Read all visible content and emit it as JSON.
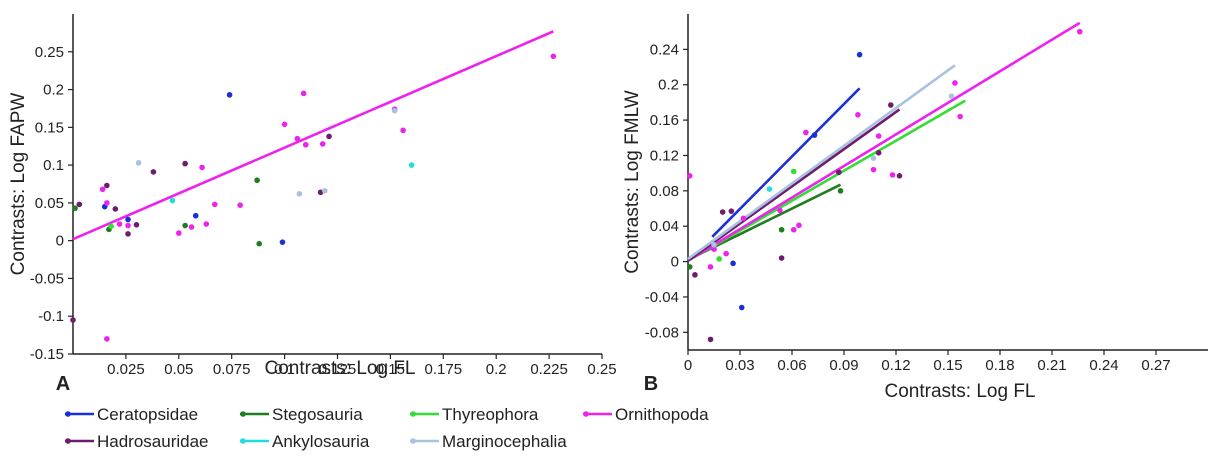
{
  "legend": [
    {
      "name": "Ceratopsidae",
      "color": "#1a2fd6"
    },
    {
      "name": "Stegosauria",
      "color": "#1e7d1e"
    },
    {
      "name": "Thyreophora",
      "color": "#33dd33"
    },
    {
      "name": "Ornithopoda",
      "color": "#ee22ee"
    },
    {
      "name": "Hadrosauridae",
      "color": "#6e1c6e"
    },
    {
      "name": "Ankylosauria",
      "color": "#22dddd"
    },
    {
      "name": "Marginocephalia",
      "color": "#a9c2e0"
    }
  ],
  "chart_data": [
    {
      "panel": "A",
      "type": "scatter",
      "xlabel": "Contrasts: Log FL",
      "ylabel": "Contrasts: Log FAPW",
      "xlim": [
        0,
        0.25
      ],
      "ylim": [
        -0.15,
        0.3
      ],
      "x_ticks": [
        0.025,
        0.05,
        0.075,
        0.1,
        0.125,
        0.15,
        0.175,
        0.2,
        0.225,
        0.25
      ],
      "x_tick_labels": [
        "0.025",
        "0.05",
        "0.075",
        "0.1",
        "0.125",
        "0.15",
        "0.175",
        "0.2",
        "0.225",
        "0.25"
      ],
      "y_ticks": [
        -0.15,
        -0.1,
        -0.05,
        0,
        0.05,
        0.1,
        0.15,
        0.2,
        0.25
      ],
      "y_tick_labels": [
        "-0.15",
        "-0.1",
        "-0.05",
        "0",
        "0.05",
        "0.1",
        "0.15",
        "0.2",
        "0.25"
      ],
      "lines": [
        {
          "series": "Ornithopoda",
          "x": [
            0,
            0.227
          ],
          "y": [
            0.002,
            0.277
          ]
        }
      ],
      "series": [
        {
          "name": "Ceratopsidae",
          "points": [
            [
              0.015,
              0.045
            ],
            [
              0.026,
              0.028
            ],
            [
              0.058,
              0.033
            ],
            [
              0.074,
              0.193
            ],
            [
              0.099,
              -0.002
            ]
          ]
        },
        {
          "name": "Stegosauria",
          "points": [
            [
              0.001,
              0.043
            ],
            [
              0.017,
              0.015
            ],
            [
              0.053,
              0.02
            ],
            [
              0.087,
              0.08
            ],
            [
              0.088,
              -0.004
            ]
          ]
        },
        {
          "name": "Thyreophora",
          "points": [
            [
              0.018,
              0.019
            ]
          ]
        },
        {
          "name": "Ornithopoda",
          "points": [
            [
              0.014,
              0.068
            ],
            [
              0.016,
              0.05
            ],
            [
              0.016,
              -0.13
            ],
            [
              0.022,
              0.022
            ],
            [
              0.026,
              0.02
            ],
            [
              0.05,
              0.01
            ],
            [
              0.056,
              0.018
            ],
            [
              0.061,
              0.097
            ],
            [
              0.063,
              0.022
            ],
            [
              0.067,
              0.048
            ],
            [
              0.079,
              0.047
            ],
            [
              0.1,
              0.154
            ],
            [
              0.106,
              0.135
            ],
            [
              0.109,
              0.195
            ],
            [
              0.11,
              0.127
            ],
            [
              0.118,
              0.128
            ],
            [
              0.152,
              0.174
            ],
            [
              0.156,
              0.146
            ],
            [
              0.227,
              0.244
            ]
          ]
        },
        {
          "name": "Hadrosauridae",
          "points": [
            [
              0.0,
              -0.105
            ],
            [
              0.003,
              0.048
            ],
            [
              0.016,
              0.073
            ],
            [
              0.02,
              0.042
            ],
            [
              0.026,
              0.009
            ],
            [
              0.03,
              0.021
            ],
            [
              0.038,
              0.091
            ],
            [
              0.053,
              0.102
            ],
            [
              0.117,
              0.064
            ],
            [
              0.121,
              0.138
            ]
          ]
        },
        {
          "name": "Ankylosauria",
          "points": [
            [
              0.047,
              0.053
            ],
            [
              0.16,
              0.1
            ]
          ]
        },
        {
          "name": "Marginocephalia",
          "points": [
            [
              0.031,
              0.103
            ],
            [
              0.107,
              0.062
            ],
            [
              0.119,
              0.066
            ],
            [
              0.152,
              0.172
            ]
          ]
        }
      ]
    },
    {
      "panel": "B",
      "type": "scatter",
      "xlabel": "Contrasts: Log FL",
      "ylabel": "Contrasts: Log FMLW",
      "xlim": [
        0,
        0.3
      ],
      "ylim": [
        -0.1,
        0.28
      ],
      "x_ticks": [
        0,
        0.03,
        0.06,
        0.09,
        0.12,
        0.15,
        0.18,
        0.21,
        0.24,
        0.27
      ],
      "x_tick_labels": [
        "0",
        "0.03",
        "0.06",
        "0.09",
        "0.12",
        "0.15",
        "0.18",
        "0.21",
        "0.24",
        "0.27"
      ],
      "y_ticks": [
        -0.08,
        -0.04,
        0,
        0.04,
        0.08,
        0.12,
        0.16,
        0.2,
        0.24
      ],
      "y_tick_labels": [
        "-0.08",
        "-0.04",
        "0",
        "0.04",
        "0.08",
        "0.12",
        "0.16",
        "0.2",
        "0.24"
      ],
      "lines": [
        {
          "series": "Ceratopsidae",
          "x": [
            0.014,
            0.099
          ],
          "y": [
            0.028,
            0.196
          ]
        },
        {
          "series": "Stegosauria",
          "x": [
            0,
            0.088
          ],
          "y": [
            0.002,
            0.087
          ]
        },
        {
          "series": "Thyreophora",
          "x": [
            0,
            0.16
          ],
          "y": [
            0.001,
            0.182
          ]
        },
        {
          "series": "Ornithopoda",
          "x": [
            0,
            0.226
          ],
          "y": [
            0.001,
            0.27
          ]
        },
        {
          "series": "Hadrosauridae",
          "x": [
            0,
            0.122
          ],
          "y": [
            0.001,
            0.172
          ]
        },
        {
          "series": "Marginocephalia",
          "x": [
            0,
            0.154
          ],
          "y": [
            0.003,
            0.222
          ]
        }
      ],
      "series": [
        {
          "name": "Ceratopsidae",
          "points": [
            [
              0.026,
              -0.002
            ],
            [
              0.031,
              -0.052
            ],
            [
              0.073,
              0.143
            ],
            [
              0.099,
              0.234
            ]
          ]
        },
        {
          "name": "Stegosauria",
          "points": [
            [
              0.001,
              -0.006
            ],
            [
              0.054,
              0.036
            ],
            [
              0.088,
              0.08
            ]
          ]
        },
        {
          "name": "Thyreophora",
          "points": [
            [
              0.018,
              0.003
            ],
            [
              0.061,
              0.102
            ]
          ]
        },
        {
          "name": "Ornithopoda",
          "points": [
            [
              0.001,
              0.097
            ],
            [
              0.013,
              -0.006
            ],
            [
              0.015,
              0.014
            ],
            [
              0.022,
              0.009
            ],
            [
              0.032,
              0.049
            ],
            [
              0.053,
              0.058
            ],
            [
              0.061,
              0.036
            ],
            [
              0.064,
              0.041
            ],
            [
              0.068,
              0.146
            ],
            [
              0.098,
              0.166
            ],
            [
              0.107,
              0.104
            ],
            [
              0.11,
              0.142
            ],
            [
              0.118,
              0.098
            ],
            [
              0.154,
              0.202
            ],
            [
              0.157,
              0.164
            ],
            [
              0.226,
              0.26
            ]
          ]
        },
        {
          "name": "Hadrosauridae",
          "points": [
            [
              0.004,
              -0.015
            ],
            [
              0.013,
              -0.088
            ],
            [
              0.02,
              0.056
            ],
            [
              0.025,
              0.057
            ],
            [
              0.054,
              0.004
            ],
            [
              0.087,
              0.101
            ],
            [
              0.11,
              0.123
            ],
            [
              0.117,
              0.177
            ],
            [
              0.122,
              0.097
            ]
          ]
        },
        {
          "name": "Ankylosauria",
          "points": [
            [
              0.047,
              0.082
            ]
          ]
        },
        {
          "name": "Marginocephalia",
          "points": [
            [
              0.015,
              0.019
            ],
            [
              0.107,
              0.117
            ],
            [
              0.152,
              0.187
            ]
          ]
        }
      ]
    }
  ]
}
